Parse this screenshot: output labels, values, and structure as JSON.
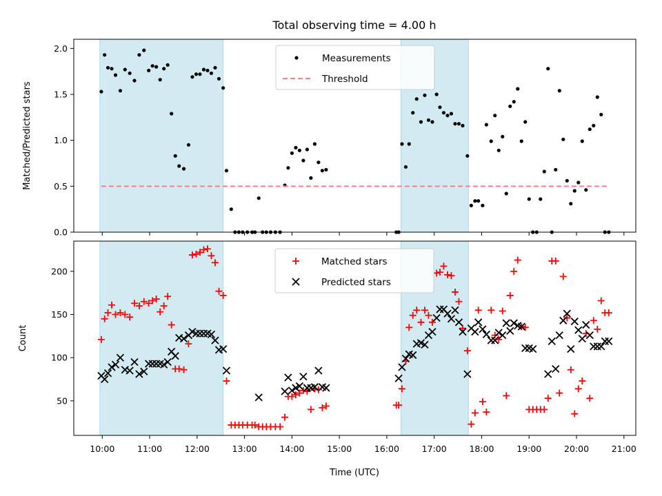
{
  "figure": {
    "title": "Total observing time = 4.00 h",
    "xlabel": "Time (UTC)",
    "xticks": [
      "10:00",
      "11:00",
      "12:00",
      "13:00",
      "14:00",
      "15:00",
      "16:00",
      "17:00",
      "18:00",
      "19:00",
      "20:00",
      "21:00"
    ]
  },
  "chart_data": [
    {
      "type": "scatter",
      "ylabel": "Matched/Predicted stars",
      "xlim": [
        9.4,
        21.25
      ],
      "ylim": [
        0,
        2.1
      ],
      "yticks": [
        0,
        0.5,
        1,
        1.5,
        2
      ],
      "ytick_labels": [
        "0.0",
        "0.5",
        "1.0",
        "1.5",
        "2.0"
      ],
      "shaded_intervals": [
        [
          9.95,
          12.55
        ],
        [
          16.3,
          17.72
        ]
      ],
      "shade_color": "#add8e6",
      "legend_placement": "top-center",
      "series": [
        {
          "name": "Measurements",
          "marker": "dot",
          "color": "#000000",
          "x": [
            9.98,
            10.05,
            10.12,
            10.2,
            10.28,
            10.38,
            10.48,
            10.58,
            10.68,
            10.78,
            10.88,
            10.98,
            11.06,
            11.14,
            11.22,
            11.3,
            11.38,
            11.46,
            11.54,
            11.62,
            11.72,
            11.82,
            11.9,
            11.98,
            12.06,
            12.14,
            12.22,
            12.3,
            12.38,
            12.46,
            12.55,
            12.62,
            12.72,
            12.8,
            12.88,
            12.96,
            13.06,
            13.16,
            13.22,
            13.3,
            13.38,
            13.46,
            13.55,
            13.65,
            13.75,
            13.85,
            13.92,
            14.0,
            14.08,
            14.16,
            14.24,
            14.32,
            14.4,
            14.48,
            14.56,
            14.64,
            14.72,
            16.2,
            16.25,
            16.32,
            16.4,
            16.47,
            16.55,
            16.63,
            16.72,
            16.8,
            16.88,
            16.96,
            17.05,
            17.12,
            17.2,
            17.28,
            17.36,
            17.44,
            17.52,
            17.6,
            17.7,
            17.78,
            17.86,
            17.93,
            18.02,
            18.1,
            18.2,
            18.28,
            18.36,
            18.44,
            18.52,
            18.6,
            18.68,
            18.76,
            18.84,
            18.92,
            19.0,
            19.08,
            19.16,
            19.24,
            19.32,
            19.4,
            19.48,
            19.56,
            19.64,
            19.72,
            19.8,
            19.88,
            19.96,
            20.04,
            20.12,
            20.2,
            20.28,
            20.36,
            20.44,
            20.52,
            20.6,
            20.68
          ],
          "y": [
            1.53,
            1.93,
            1.79,
            1.78,
            1.71,
            1.54,
            1.77,
            1.73,
            1.65,
            1.93,
            1.98,
            1.76,
            1.81,
            1.8,
            1.66,
            1.78,
            1.82,
            1.29,
            0.83,
            0.72,
            0.69,
            0.95,
            1.69,
            1.72,
            1.72,
            1.77,
            1.76,
            1.73,
            1.79,
            1.67,
            1.57,
            0.67,
            0.25,
            0.0,
            0.0,
            0.0,
            0.0,
            0.0,
            0.0,
            0.37,
            0.0,
            0.0,
            0.0,
            0.0,
            0.0,
            0.51,
            0.7,
            0.86,
            0.92,
            0.89,
            0.78,
            0.9,
            0.59,
            0.96,
            0.76,
            0.67,
            0.68,
            0.0,
            0.0,
            0.96,
            0.71,
            0.96,
            1.3,
            1.45,
            1.2,
            1.49,
            1.22,
            1.2,
            1.5,
            1.36,
            1.3,
            1.27,
            1.29,
            1.18,
            1.18,
            1.16,
            0.83,
            0.29,
            0.34,
            0.34,
            0.29,
            1.17,
            0.99,
            1.27,
            0.89,
            1.04,
            0.42,
            1.37,
            1.42,
            1.56,
            0.99,
            1.2,
            0.36,
            0.0,
            0.0,
            0.36,
            0.66,
            1.78,
            0.0,
            0.68,
            1.54,
            1.01,
            0.56,
            0.31,
            0.45,
            0.54,
            0.99,
            0.46,
            1.12,
            1.16,
            1.47,
            1.28,
            0.0,
            0.0
          ]
        },
        {
          "name": "Threshold",
          "marker": "dashed-line",
          "color": "#ff7f7f",
          "x": [
            9.98,
            20.68
          ],
          "y": [
            0.5,
            0.5
          ]
        }
      ]
    },
    {
      "type": "scatter",
      "ylabel": "Count",
      "xlim": [
        9.4,
        21.25
      ],
      "ylim": [
        10,
        235
      ],
      "yticks": [
        50,
        100,
        150,
        200
      ],
      "ytick_labels": [
        "50",
        "100",
        "150",
        "200"
      ],
      "shaded_intervals": [
        [
          9.95,
          12.55
        ],
        [
          16.3,
          17.72
        ]
      ],
      "shade_color": "#add8e6",
      "legend_placement": "top-center",
      "series": [
        {
          "name": "Matched stars",
          "marker": "plus",
          "color": "#ff0000",
          "x": [
            9.98,
            10.05,
            10.12,
            10.2,
            10.28,
            10.38,
            10.48,
            10.58,
            10.68,
            10.78,
            10.88,
            10.98,
            11.06,
            11.14,
            11.22,
            11.3,
            11.38,
            11.46,
            11.54,
            11.62,
            11.72,
            11.82,
            11.9,
            11.98,
            12.06,
            12.14,
            12.22,
            12.3,
            12.38,
            12.46,
            12.55,
            12.62,
            12.72,
            12.8,
            12.88,
            12.96,
            13.06,
            13.16,
            13.22,
            13.3,
            13.38,
            13.46,
            13.55,
            13.65,
            13.75,
            13.85,
            13.92,
            14.0,
            14.08,
            14.16,
            14.24,
            14.32,
            14.4,
            14.48,
            14.56,
            14.64,
            14.72,
            16.2,
            16.25,
            16.32,
            16.4,
            16.47,
            16.55,
            16.63,
            16.72,
            16.8,
            16.88,
            16.96,
            17.05,
            17.12,
            17.2,
            17.28,
            17.36,
            17.44,
            17.52,
            17.6,
            17.7,
            17.78,
            17.86,
            17.93,
            18.02,
            18.1,
            18.2,
            18.28,
            18.36,
            18.44,
            18.52,
            18.6,
            18.68,
            18.76,
            18.84,
            18.92,
            19.0,
            19.08,
            19.16,
            19.24,
            19.32,
            19.4,
            19.48,
            19.56,
            19.64,
            19.72,
            19.8,
            19.88,
            19.96,
            20.04,
            20.12,
            20.2,
            20.28,
            20.36,
            20.44,
            20.52,
            20.6,
            20.68
          ],
          "y": [
            121,
            145,
            152,
            161,
            150,
            152,
            150,
            147,
            163,
            160,
            165,
            163,
            166,
            168,
            153,
            160,
            171,
            138,
            87,
            87,
            86,
            116,
            219,
            220,
            222,
            225,
            226,
            218,
            210,
            177,
            172,
            73,
            22,
            22,
            22,
            22,
            22,
            22,
            22,
            20,
            20,
            20,
            20,
            20,
            20,
            31,
            55,
            55,
            57,
            59,
            62,
            61,
            40,
            64,
            63,
            42,
            44,
            45,
            45,
            64,
            96,
            135,
            149,
            155,
            141,
            155,
            149,
            141,
            198,
            199,
            206,
            196,
            195,
            176,
            165,
            134,
            108,
            23,
            36,
            155,
            49,
            37,
            155,
            126,
            121,
            154,
            56,
            172,
            200,
            213,
            136,
            135,
            40,
            40,
            40,
            40,
            40,
            53,
            212,
            212,
            59,
            194,
            146,
            86,
            35,
            64,
            73,
            128,
            53,
            143,
            133,
            166,
            152,
            152
          ]
        },
        {
          "name": "Predicted stars",
          "marker": "x",
          "color": "#000000",
          "x": [
            9.98,
            10.05,
            10.12,
            10.2,
            10.28,
            10.38,
            10.48,
            10.58,
            10.68,
            10.78,
            10.88,
            10.98,
            11.06,
            11.14,
            11.22,
            11.3,
            11.38,
            11.46,
            11.54,
            11.62,
            11.72,
            11.82,
            11.9,
            11.98,
            12.06,
            12.14,
            12.22,
            12.3,
            12.38,
            12.46,
            12.55,
            12.62,
            13.3,
            13.85,
            13.92,
            14.0,
            14.08,
            14.16,
            14.24,
            14.32,
            14.4,
            14.48,
            14.56,
            14.64,
            14.72,
            16.25,
            16.32,
            16.4,
            16.47,
            16.55,
            16.63,
            16.72,
            16.8,
            16.88,
            16.96,
            17.05,
            17.12,
            17.2,
            17.28,
            17.36,
            17.44,
            17.52,
            17.6,
            17.7,
            17.78,
            17.86,
            17.93,
            18.02,
            18.1,
            18.2,
            18.28,
            18.36,
            18.44,
            18.52,
            18.6,
            18.68,
            18.76,
            18.84,
            18.92,
            19.0,
            19.08,
            19.4,
            19.48,
            19.56,
            19.64,
            19.72,
            19.8,
            19.88,
            19.96,
            20.04,
            20.12,
            20.2,
            20.28,
            20.36,
            20.44,
            20.52,
            20.6,
            20.68
          ],
          "y": [
            79,
            75,
            82,
            89,
            92,
            100,
            86,
            85,
            95,
            81,
            84,
            93,
            93,
            93,
            93,
            92,
            95,
            107,
            102,
            123,
            122,
            126,
            130,
            128,
            128,
            128,
            128,
            127,
            120,
            109,
            110,
            85,
            54,
            61,
            77,
            62,
            65,
            67,
            78,
            65,
            65,
            66,
            85,
            66,
            65,
            76,
            89,
            99,
            104,
            103,
            116,
            117,
            115,
            126,
            130,
            146,
            156,
            156,
            151,
            145,
            155,
            141,
            130,
            81,
            134,
            130,
            141,
            133,
            127,
            120,
            120,
            129,
            126,
            140,
            131,
            140,
            137,
            136,
            111,
            111,
            110,
            81,
            119,
            87,
            126,
            143,
            151,
            110,
            142,
            132,
            122,
            138,
            126,
            113,
            113,
            113,
            119,
            119
          ]
        }
      ]
    }
  ]
}
